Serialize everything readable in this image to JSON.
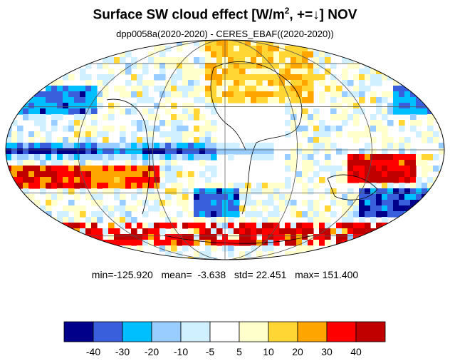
{
  "title": {
    "main": "Surface SW cloud effect [W/m",
    "superscript": "2",
    "rest": ", +=↓]  NOV"
  },
  "subtitle": "dpp0058a(2020-2020) - CERES_EBAF((2020-2020))",
  "stats": {
    "min_label": "min=",
    "min": "-125.920",
    "mean_label": "mean=",
    "mean": "-3.638",
    "std_label": "std=",
    "std": "22.451",
    "max_label": "max=",
    "max": "151.400"
  },
  "colorbar": {
    "colors": [
      "#00008b",
      "#3a5fdc",
      "#00bfff",
      "#99ccff",
      "#d0f0ff",
      "#ffffff",
      "#ffffcc",
      "#ffd633",
      "#ffa500",
      "#ff0000",
      "#c00000"
    ],
    "tick_labels": [
      "-40",
      "-30",
      "-20",
      "-10",
      "-5",
      "5",
      "10",
      "20",
      "30",
      "40"
    ]
  },
  "map": {
    "projection": "Mollweide",
    "field": "surface SW cloud effect difference (model minus CERES)",
    "region_notes": [
      "blue band along equatorial Pacific/Atlantic",
      "red patches in southern ocean and Indonesia",
      "white near zero over land"
    ]
  }
}
